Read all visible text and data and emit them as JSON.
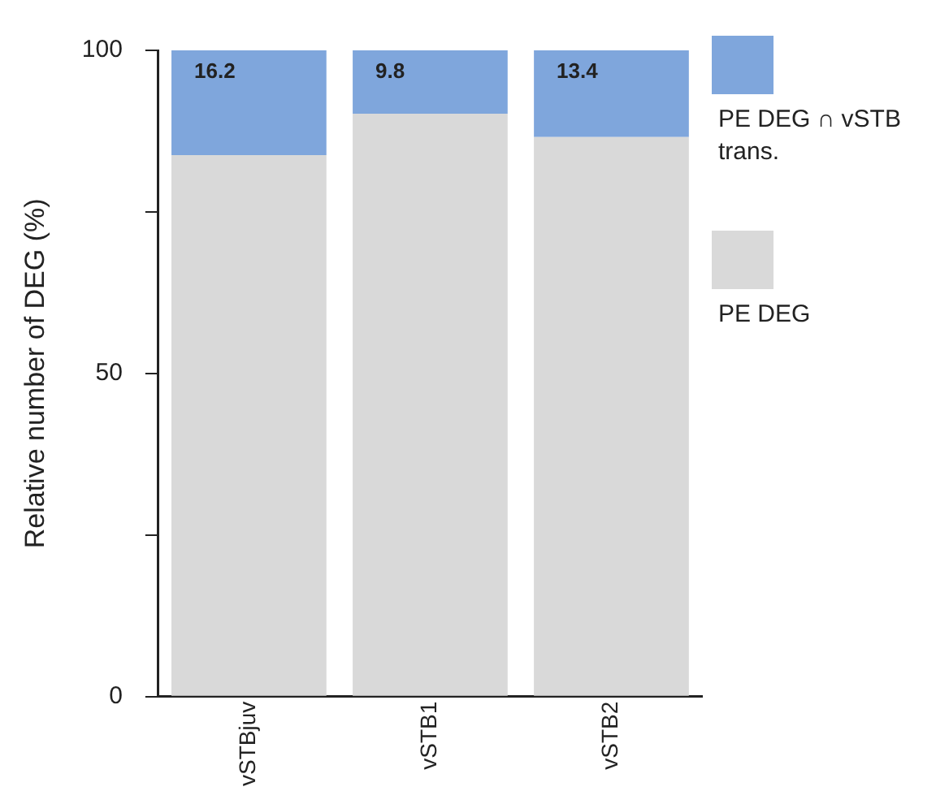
{
  "chart_data": {
    "type": "bar",
    "stacked": true,
    "ylabel": "Relative number of DEG (%)",
    "categories": [
      "vSTBjuv",
      "vSTB1",
      "vSTB2"
    ],
    "series": [
      {
        "name": "PE DEG",
        "color": "#d9d9d9",
        "values": [
          83.8,
          90.2,
          86.6
        ]
      },
      {
        "name": "PE DEG ∩ vSTB trans.",
        "color": "#7fa6dc",
        "values": [
          16.2,
          9.8,
          13.4
        ],
        "value_labels": [
          "16.2",
          "9.8",
          "13.4"
        ]
      }
    ],
    "ylim": [
      0,
      100
    ],
    "yticks": [
      0,
      {
        "value": 25,
        "label": null
      },
      50,
      {
        "value": 75,
        "label": null
      },
      100
    ],
    "grid": false,
    "legend": "right"
  }
}
